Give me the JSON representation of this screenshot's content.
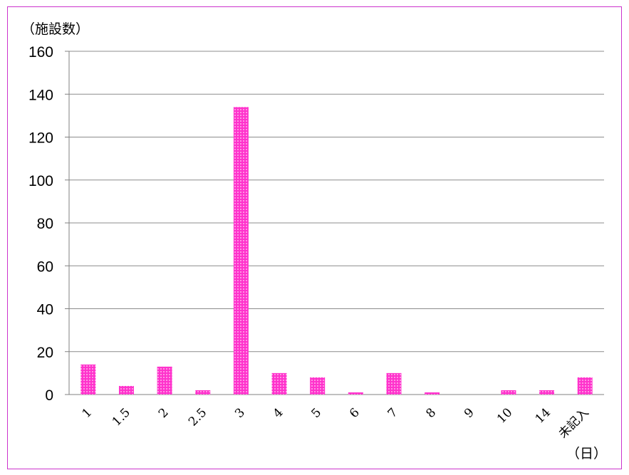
{
  "chart_data": {
    "type": "bar",
    "title": "",
    "ylabel": "（施設数）",
    "xlabel": "（日）",
    "categories": [
      "1",
      "1.5",
      "2",
      "2.5",
      "3",
      "4",
      "5",
      "6",
      "7",
      "8",
      "9",
      "10",
      "14",
      "未記入"
    ],
    "values": [
      14,
      4,
      13,
      2,
      134,
      10,
      8,
      1,
      10,
      1,
      0,
      2,
      2,
      8
    ],
    "ylim": [
      0,
      160
    ],
    "yticks": [
      0,
      20,
      40,
      60,
      80,
      100,
      120,
      140,
      160
    ],
    "grid": true,
    "legend": "none",
    "colors": {
      "bar": "#ff33cc",
      "bar_dot": "#ffd6f5",
      "frame": "#cc33cc",
      "grid": "#8c8c8c",
      "axis": "#808080"
    }
  }
}
